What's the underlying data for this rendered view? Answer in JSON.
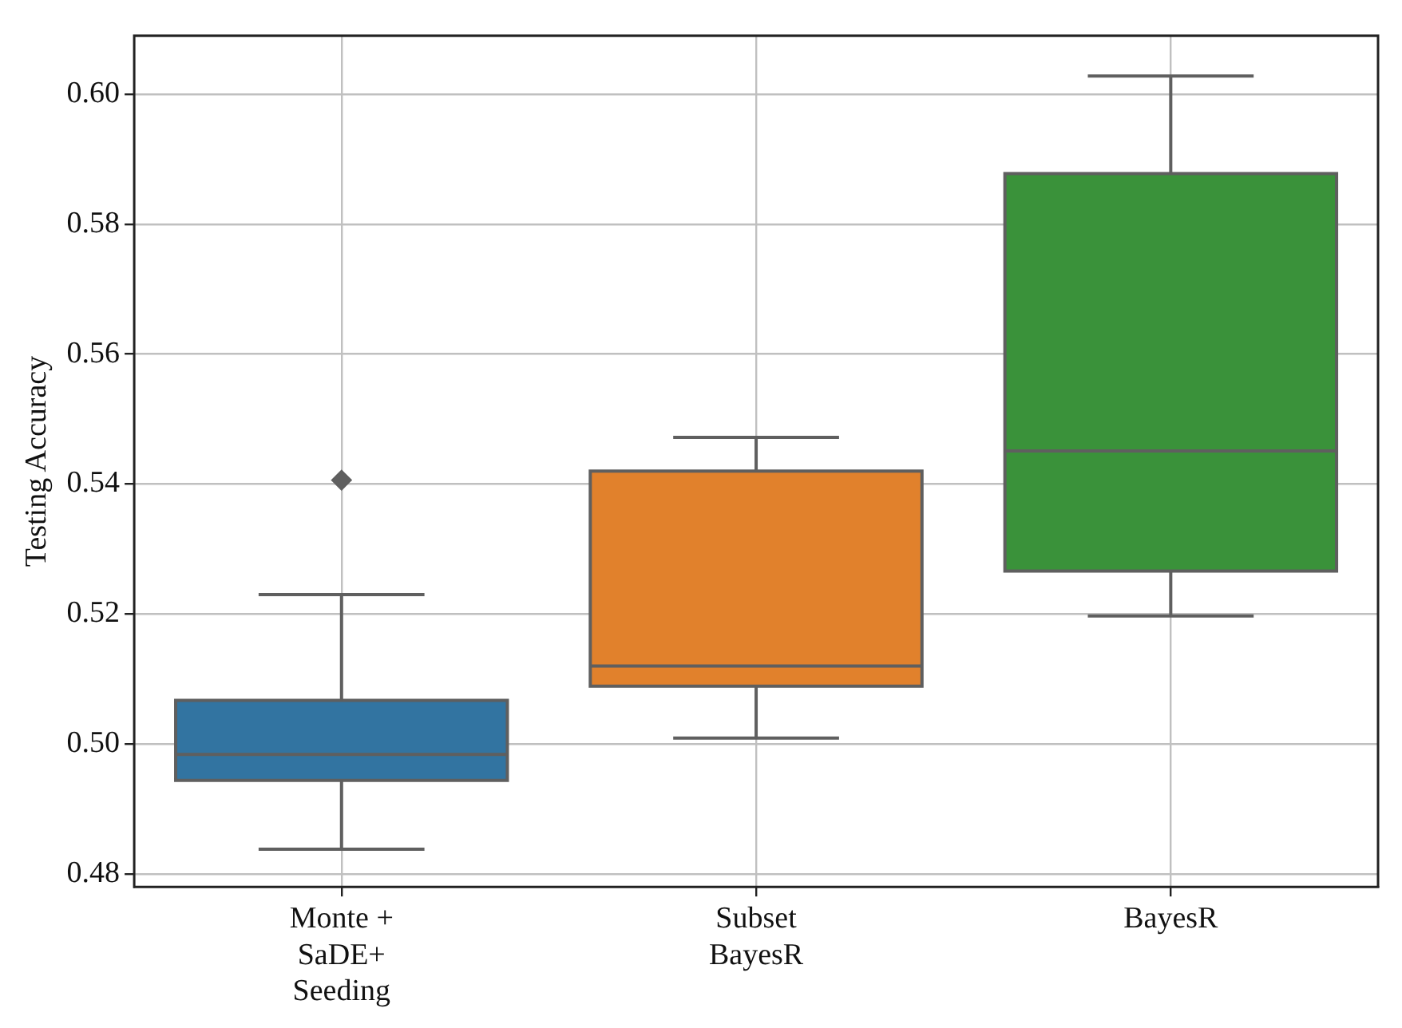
{
  "chart_data": {
    "type": "box",
    "ylabel": "Testing Accuracy",
    "categories": [
      "Monte + SaDE+ Seeding",
      "Subset BayesR",
      "BayesR"
    ],
    "boxes": [
      {
        "low": 0.4838,
        "q1": 0.4944,
        "median": 0.4984,
        "q3": 0.5067,
        "high": 0.523,
        "outliers": [
          0.5406
        ]
      },
      {
        "low": 0.5009,
        "q1": 0.5089,
        "median": 0.512,
        "q3": 0.542,
        "high": 0.5472
      },
      {
        "low": 0.5197,
        "q1": 0.5266,
        "median": 0.5451,
        "q3": 0.5878,
        "high": 0.6028
      }
    ],
    "colors": [
      "#3274a1",
      "#e1812c",
      "#3a923a"
    ],
    "ylim": [
      0.478,
      0.609
    ],
    "yticks": [
      {
        "value": 0.48,
        "label": "0.48"
      },
      {
        "value": 0.5,
        "label": "0.50"
      },
      {
        "value": 0.52,
        "label": "0.52"
      },
      {
        "value": 0.54,
        "label": "0.54"
      },
      {
        "value": 0.56,
        "label": "0.56"
      },
      {
        "value": 0.58,
        "label": "0.58"
      },
      {
        "value": 0.6,
        "label": "0.60"
      }
    ],
    "grid": true,
    "marker": "diamond"
  }
}
